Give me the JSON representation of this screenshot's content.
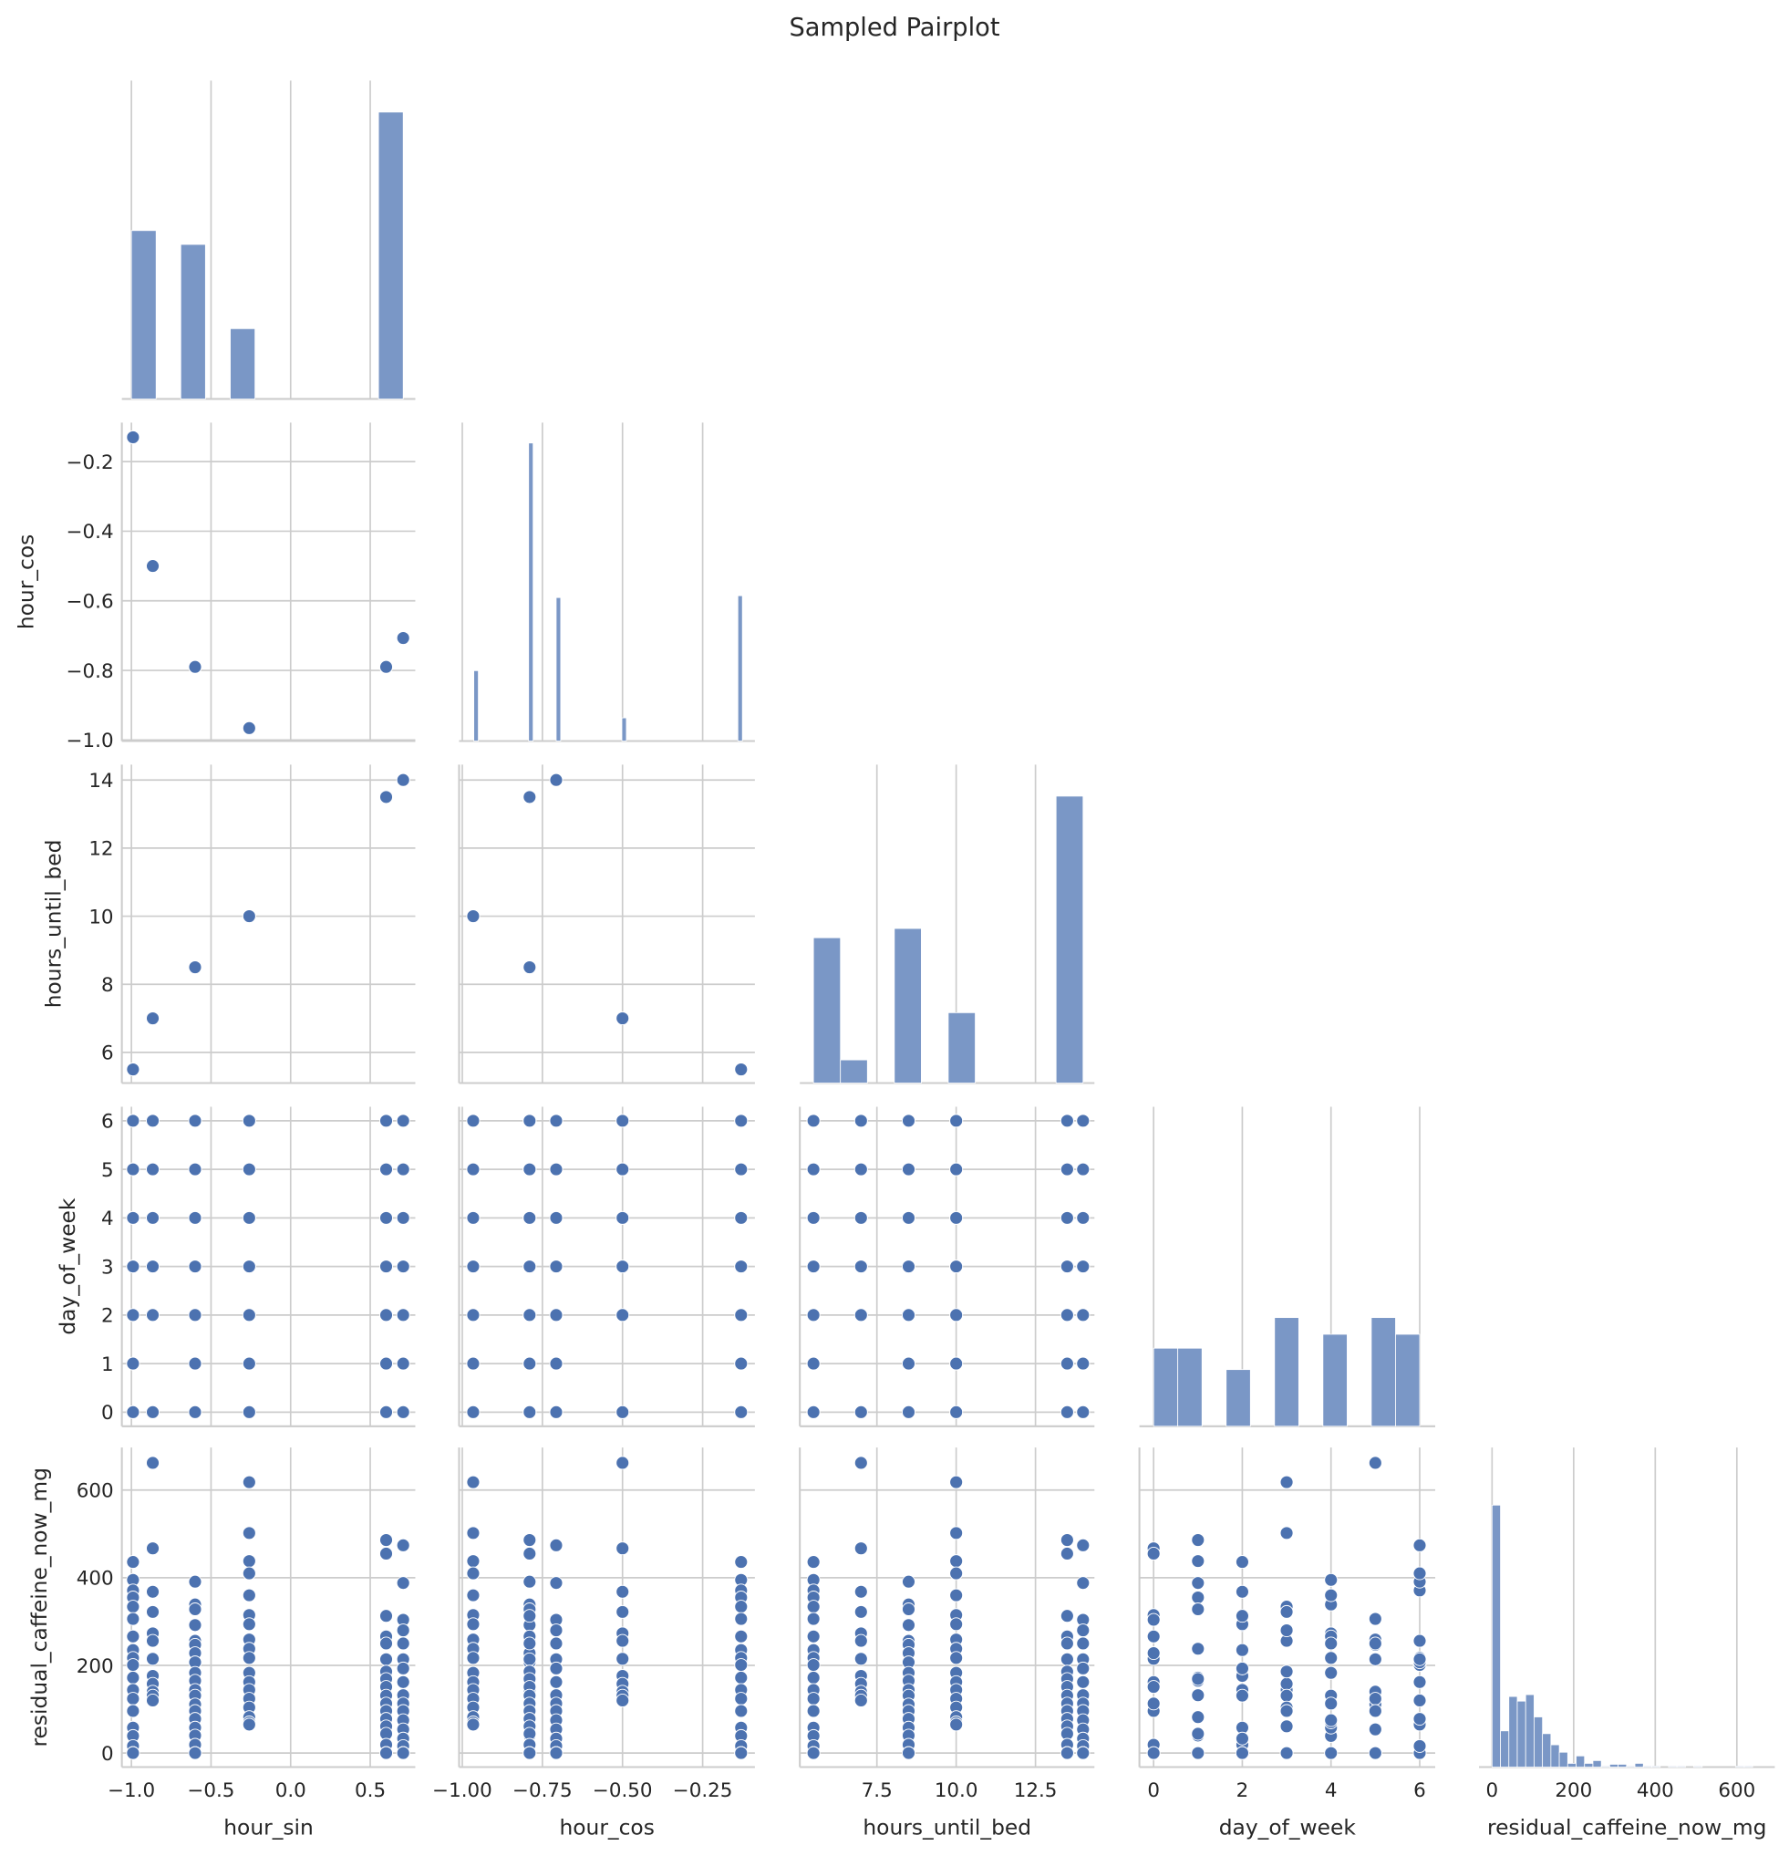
{
  "chart_data": {
    "type": "pairplot",
    "title": "Sampled Pairplot",
    "layout": "corner",
    "grid": true,
    "colors": {
      "point": "#4c72b0",
      "bar": "#7a97c6",
      "grid": "#cccccc",
      "text": "#262626"
    },
    "diag_ylim": [
      0,
      344
    ],
    "variables": [
      {
        "name": "hour_sin",
        "label": "hour_sin",
        "lim": [
          -1.06,
          0.783
        ],
        "x_ticks": [
          -1.0,
          -0.5,
          0.0,
          0.5
        ],
        "x_tick_labels": [
          "−1.0",
          "−0.5",
          "0.0",
          "0.5"
        ],
        "y_ticks": [],
        "y_tick_labels": []
      },
      {
        "name": "hour_cos",
        "label": "hour_cos",
        "lim": [
          -1.01,
          -0.087
        ],
        "ylim": [
          -1.003,
          -0.088
        ],
        "x_ticks": [
          -1.0,
          -0.75,
          -0.5,
          -0.25
        ],
        "x_tick_labels": [
          "−1.00",
          "−0.75",
          "−0.50",
          "−0.25"
        ],
        "y_ticks": [
          -1.0,
          -0.8,
          -0.6,
          -0.4,
          -0.2
        ],
        "y_tick_labels": [
          "−1.0",
          "−0.8",
          "−0.6",
          "−0.4",
          "−0.2"
        ]
      },
      {
        "name": "hours_until_bed",
        "label": "hours_until_bed",
        "lim": [
          5.07,
          14.36
        ],
        "ylim": [
          5.1,
          14.45
        ],
        "x_ticks": [
          7.5,
          10.0,
          12.5
        ],
        "x_tick_labels": [
          "7.5",
          "10.0",
          "12.5"
        ],
        "y_ticks": [
          6,
          8,
          10,
          12,
          14
        ],
        "y_tick_labels": [
          "6",
          "8",
          "10",
          "12",
          "14"
        ]
      },
      {
        "name": "day_of_week",
        "label": "day_of_week",
        "lim": [
          -0.32,
          6.35
        ],
        "ylim": [
          -0.29,
          6.29
        ],
        "x_ticks": [
          0,
          2,
          4,
          6
        ],
        "x_tick_labels": [
          "0",
          "2",
          "4",
          "6"
        ],
        "y_ticks": [
          0,
          1,
          2,
          3,
          4,
          5,
          6
        ],
        "y_tick_labels": [
          "0",
          "1",
          "2",
          "3",
          "4",
          "5",
          "6"
        ]
      },
      {
        "name": "residual_caffeine_now_mg",
        "label": "residual_caffeine_now_mg",
        "lim": [
          -32,
          693
        ],
        "ylim": [
          -32,
          697
        ],
        "x_ticks": [
          0,
          200,
          400,
          600
        ],
        "x_tick_labels": [
          "0",
          "200",
          "400",
          "600"
        ],
        "y_ticks": [
          0,
          200,
          400,
          600
        ],
        "y_tick_labels": [
          "0",
          "200",
          "400",
          "600"
        ]
      }
    ],
    "histograms": [
      {
        "variable": "hour_sin",
        "bars": [
          [
            -1.0,
            -0.845,
            182
          ],
          [
            -0.69,
            -0.535,
            167
          ],
          [
            -0.379,
            -0.224,
            76
          ],
          [
            0.552,
            0.707,
            310
          ]
        ]
      },
      {
        "variable": "hour_cos",
        "bars": [
          [
            -0.964,
            -0.95,
            76
          ],
          [
            -0.793,
            -0.779,
            322
          ],
          [
            -0.707,
            -0.693,
            155
          ],
          [
            -0.502,
            -0.488,
            25
          ],
          [
            -0.14,
            -0.126,
            157
          ]
        ]
      },
      {
        "variable": "hours_until_bed",
        "bars": [
          [
            5.5,
            6.35,
            157
          ],
          [
            6.35,
            7.2,
            25
          ],
          [
            8.05,
            8.9,
            167
          ],
          [
            9.75,
            10.6,
            76
          ],
          [
            13.15,
            14.0,
            310
          ]
        ]
      },
      {
        "variable": "day_of_week",
        "bars": [
          [
            0,
            0.545,
            84
          ],
          [
            0.545,
            1.091,
            84
          ],
          [
            1.636,
            2.182,
            61
          ],
          [
            2.727,
            3.273,
            117
          ],
          [
            3.818,
            4.364,
            99
          ],
          [
            4.909,
            5.455,
            117
          ],
          [
            5.455,
            6.0,
            99
          ]
        ]
      },
      {
        "variable": "residual_caffeine_now_mg",
        "bin_start": 0,
        "bin_width": 20.6,
        "counts": [
          282,
          39,
          76,
          71,
          78,
          54,
          36,
          24,
          16,
          4,
          12,
          4,
          7,
          1,
          3,
          3,
          1,
          4,
          1,
          1,
          0,
          1,
          1,
          0,
          1,
          0,
          0,
          0,
          0,
          1,
          1,
          0
        ]
      }
    ],
    "point_groups": [
      {
        "hour_sin": -0.99,
        "hour_cos": -0.13,
        "hours_until_bed": 5.5,
        "points": [
          [
            2,
            436
          ],
          [
            4,
            395
          ],
          [
            6,
            371
          ],
          [
            1,
            355
          ],
          [
            3,
            334
          ],
          [
            5,
            306
          ],
          [
            0,
            266
          ],
          [
            2,
            235
          ],
          [
            4,
            217
          ],
          [
            6,
            201
          ],
          [
            1,
            172
          ],
          [
            3,
            144
          ],
          [
            5,
            124
          ],
          [
            0,
            96
          ],
          [
            2,
            58
          ],
          [
            4,
            39
          ],
          [
            6,
            16
          ],
          [
            1,
            0
          ],
          [
            3,
            0
          ],
          [
            5,
            0
          ],
          [
            0,
            0
          ]
        ]
      },
      {
        "hour_sin": -0.866,
        "hour_cos": -0.5,
        "hours_until_bed": 7.0,
        "points": [
          [
            5,
            662
          ],
          [
            0,
            467
          ],
          [
            2,
            368
          ],
          [
            3,
            322
          ],
          [
            4,
            273
          ],
          [
            6,
            256
          ],
          [
            0,
            215
          ],
          [
            2,
            176
          ],
          [
            3,
            158
          ],
          [
            5,
            140
          ],
          [
            4,
            131
          ],
          [
            6,
            120
          ]
        ]
      },
      {
        "hour_sin": -0.6,
        "hour_cos": -0.79,
        "hours_until_bed": 8.5,
        "points": [
          [
            6,
            391
          ],
          [
            4,
            339
          ],
          [
            1,
            328
          ],
          [
            2,
            292
          ],
          [
            3,
            256
          ],
          [
            5,
            247
          ],
          [
            0,
            228
          ],
          [
            6,
            207
          ],
          [
            4,
            183
          ],
          [
            1,
            165
          ],
          [
            2,
            144
          ],
          [
            3,
            131
          ],
          [
            5,
            111
          ],
          [
            0,
            96
          ],
          [
            6,
            78
          ],
          [
            4,
            58
          ],
          [
            1,
            40
          ],
          [
            2,
            19
          ],
          [
            3,
            0
          ],
          [
            5,
            0
          ],
          [
            0,
            0
          ]
        ]
      },
      {
        "hour_sin": -0.26,
        "hour_cos": -0.966,
        "hours_until_bed": 10.0,
        "points": [
          [
            3,
            618
          ],
          [
            3,
            502
          ],
          [
            1,
            438
          ],
          [
            6,
            410
          ],
          [
            4,
            360
          ],
          [
            0,
            315
          ],
          [
            2,
            294
          ],
          [
            5,
            259
          ],
          [
            1,
            238
          ],
          [
            6,
            217
          ],
          [
            4,
            183
          ],
          [
            0,
            162
          ],
          [
            2,
            144
          ],
          [
            5,
            124
          ],
          [
            3,
            104
          ],
          [
            1,
            82
          ],
          [
            4,
            70
          ],
          [
            6,
            65
          ]
        ]
      },
      {
        "hour_sin": 0.6,
        "hour_cos": -0.79,
        "hours_until_bed": 13.5,
        "points": [
          [
            1,
            486
          ],
          [
            0,
            455
          ],
          [
            2,
            313
          ],
          [
            4,
            266
          ],
          [
            5,
            250
          ],
          [
            6,
            214
          ],
          [
            3,
            186
          ],
          [
            1,
            169
          ],
          [
            0,
            151
          ],
          [
            2,
            131
          ],
          [
            4,
            113
          ],
          [
            5,
            96
          ],
          [
            6,
            78
          ],
          [
            3,
            61
          ],
          [
            1,
            44
          ],
          [
            0,
            19
          ],
          [
            2,
            0
          ],
          [
            4,
            0
          ],
          [
            5,
            0
          ],
          [
            6,
            0
          ],
          [
            3,
            0
          ]
        ]
      },
      {
        "hour_sin": 0.707,
        "hour_cos": -0.707,
        "hours_until_bed": 14.0,
        "points": [
          [
            6,
            474
          ],
          [
            1,
            388
          ],
          [
            0,
            304
          ],
          [
            3,
            280
          ],
          [
            4,
            250
          ],
          [
            5,
            214
          ],
          [
            2,
            193
          ],
          [
            6,
            162
          ],
          [
            1,
            132
          ],
          [
            0,
            113
          ],
          [
            3,
            96
          ],
          [
            4,
            75
          ],
          [
            5,
            54
          ],
          [
            2,
            33
          ],
          [
            6,
            16
          ],
          [
            1,
            0
          ],
          [
            0,
            0
          ],
          [
            3,
            0
          ],
          [
            4,
            0
          ],
          [
            5,
            0
          ],
          [
            2,
            0
          ]
        ]
      }
    ]
  }
}
